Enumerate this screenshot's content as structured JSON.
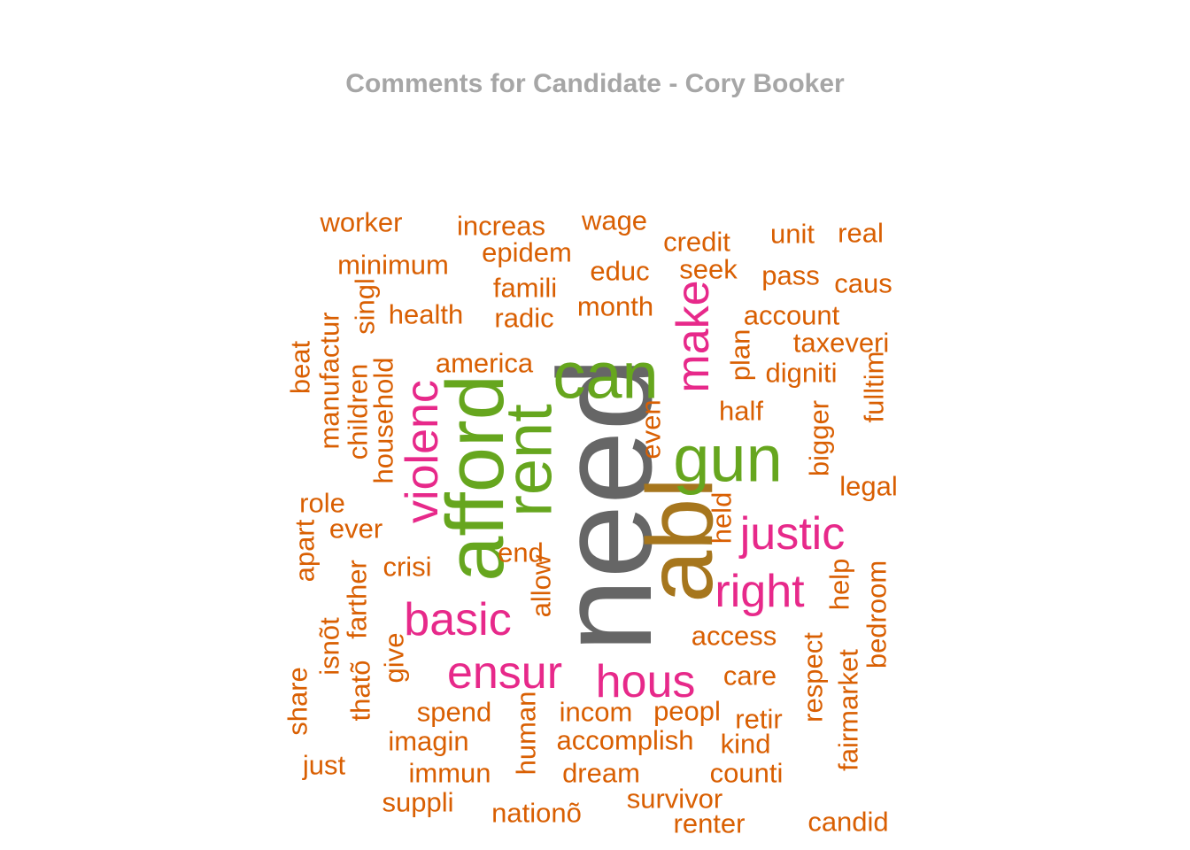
{
  "chart_data": {
    "type": "wordcloud",
    "title": "Comments for Candidate - Cory Booker",
    "colors": {
      "orange": "#d95f02",
      "pink": "#e7298a",
      "green": "#66a61e",
      "gray": "#666666",
      "gold": "#a6761d"
    },
    "words": [
      {
        "text": "need",
        "color": "gray",
        "weight": 10,
        "rotated": true
      },
      {
        "text": "abl",
        "color": "gold",
        "weight": 8,
        "rotated": true
      },
      {
        "text": "afford",
        "color": "green",
        "weight": 6,
        "rotated": true
      },
      {
        "text": "rent",
        "color": "green",
        "weight": 6,
        "rotated": true
      },
      {
        "text": "can",
        "color": "green",
        "weight": 6,
        "rotated": false
      },
      {
        "text": "gun",
        "color": "green",
        "weight": 6,
        "rotated": false
      },
      {
        "text": "make",
        "color": "pink",
        "weight": 4.5,
        "rotated": true
      },
      {
        "text": "violenc",
        "color": "pink",
        "weight": 4.5,
        "rotated": true
      },
      {
        "text": "justic",
        "color": "pink",
        "weight": 4.5,
        "rotated": false
      },
      {
        "text": "right",
        "color": "pink",
        "weight": 4.5,
        "rotated": false
      },
      {
        "text": "basic",
        "color": "pink",
        "weight": 4.5,
        "rotated": false
      },
      {
        "text": "ensur",
        "color": "pink",
        "weight": 4.5,
        "rotated": false
      },
      {
        "text": "hous",
        "color": "pink",
        "weight": 4.5,
        "rotated": false
      },
      {
        "text": "worker",
        "color": "orange",
        "weight": 2,
        "rotated": false
      },
      {
        "text": "increas",
        "color": "orange",
        "weight": 2,
        "rotated": false
      },
      {
        "text": "wage",
        "color": "orange",
        "weight": 2,
        "rotated": false
      },
      {
        "text": "credit",
        "color": "orange",
        "weight": 2,
        "rotated": false
      },
      {
        "text": "unit",
        "color": "orange",
        "weight": 2,
        "rotated": false
      },
      {
        "text": "real",
        "color": "orange",
        "weight": 2,
        "rotated": false
      },
      {
        "text": "epidem",
        "color": "orange",
        "weight": 2,
        "rotated": false
      },
      {
        "text": "minimum",
        "color": "orange",
        "weight": 2,
        "rotated": false
      },
      {
        "text": "educ",
        "color": "orange",
        "weight": 2,
        "rotated": false
      },
      {
        "text": "seek",
        "color": "orange",
        "weight": 2,
        "rotated": false
      },
      {
        "text": "pass",
        "color": "orange",
        "weight": 2,
        "rotated": false
      },
      {
        "text": "caus",
        "color": "orange",
        "weight": 2,
        "rotated": false
      },
      {
        "text": "famili",
        "color": "orange",
        "weight": 2,
        "rotated": false
      },
      {
        "text": "health",
        "color": "orange",
        "weight": 2,
        "rotated": false
      },
      {
        "text": "radic",
        "color": "orange",
        "weight": 2,
        "rotated": false
      },
      {
        "text": "month",
        "color": "orange",
        "weight": 2,
        "rotated": false
      },
      {
        "text": "account",
        "color": "orange",
        "weight": 2,
        "rotated": false
      },
      {
        "text": "taxeveri",
        "color": "orange",
        "weight": 2,
        "rotated": false
      },
      {
        "text": "america",
        "color": "orange",
        "weight": 2,
        "rotated": false
      },
      {
        "text": "digniti",
        "color": "orange",
        "weight": 2,
        "rotated": false
      },
      {
        "text": "half",
        "color": "orange",
        "weight": 2,
        "rotated": false
      },
      {
        "text": "legal",
        "color": "orange",
        "weight": 2,
        "rotated": false
      },
      {
        "text": "role",
        "color": "orange",
        "weight": 2,
        "rotated": false
      },
      {
        "text": "ever",
        "color": "orange",
        "weight": 2,
        "rotated": false
      },
      {
        "text": "end",
        "color": "orange",
        "weight": 2,
        "rotated": false
      },
      {
        "text": "crisi",
        "color": "orange",
        "weight": 2,
        "rotated": false
      },
      {
        "text": "access",
        "color": "orange",
        "weight": 2,
        "rotated": false
      },
      {
        "text": "care",
        "color": "orange",
        "weight": 2,
        "rotated": false
      },
      {
        "text": "spend",
        "color": "orange",
        "weight": 2,
        "rotated": false
      },
      {
        "text": "incom",
        "color": "orange",
        "weight": 2,
        "rotated": false
      },
      {
        "text": "peopl",
        "color": "orange",
        "weight": 2,
        "rotated": false
      },
      {
        "text": "retir",
        "color": "orange",
        "weight": 2,
        "rotated": false
      },
      {
        "text": "imagin",
        "color": "orange",
        "weight": 2,
        "rotated": false
      },
      {
        "text": "accomplish",
        "color": "orange",
        "weight": 2,
        "rotated": false
      },
      {
        "text": "kind",
        "color": "orange",
        "weight": 2,
        "rotated": false
      },
      {
        "text": "just",
        "color": "orange",
        "weight": 2,
        "rotated": false
      },
      {
        "text": "immun",
        "color": "orange",
        "weight": 2,
        "rotated": false
      },
      {
        "text": "dream",
        "color": "orange",
        "weight": 2,
        "rotated": false
      },
      {
        "text": "counti",
        "color": "orange",
        "weight": 2,
        "rotated": false
      },
      {
        "text": "suppli",
        "color": "orange",
        "weight": 2,
        "rotated": false
      },
      {
        "text": "survivor",
        "color": "orange",
        "weight": 2,
        "rotated": false
      },
      {
        "text": "nationõ",
        "color": "orange",
        "weight": 2,
        "rotated": false
      },
      {
        "text": "renter",
        "color": "orange",
        "weight": 2,
        "rotated": false
      },
      {
        "text": "candid",
        "color": "orange",
        "weight": 2,
        "rotated": false
      },
      {
        "text": "beat",
        "color": "orange",
        "weight": 2,
        "rotated": true
      },
      {
        "text": "manufactur",
        "color": "orange",
        "weight": 2,
        "rotated": true
      },
      {
        "text": "children",
        "color": "orange",
        "weight": 2,
        "rotated": true
      },
      {
        "text": "singl",
        "color": "orange",
        "weight": 2,
        "rotated": true
      },
      {
        "text": "household",
        "color": "orange",
        "weight": 2,
        "rotated": true
      },
      {
        "text": "apart",
        "color": "orange",
        "weight": 2,
        "rotated": true
      },
      {
        "text": "farther",
        "color": "orange",
        "weight": 2,
        "rotated": true
      },
      {
        "text": "isnõt",
        "color": "orange",
        "weight": 2,
        "rotated": true
      },
      {
        "text": "thatõ",
        "color": "orange",
        "weight": 2,
        "rotated": true
      },
      {
        "text": "share",
        "color": "orange",
        "weight": 2,
        "rotated": true
      },
      {
        "text": "give",
        "color": "orange",
        "weight": 2,
        "rotated": true
      },
      {
        "text": "allow",
        "color": "orange",
        "weight": 2,
        "rotated": true
      },
      {
        "text": "human",
        "color": "orange",
        "weight": 2,
        "rotated": true
      },
      {
        "text": "even",
        "color": "orange",
        "weight": 2,
        "rotated": true
      },
      {
        "text": "held",
        "color": "orange",
        "weight": 2,
        "rotated": true
      },
      {
        "text": "plan",
        "color": "orange",
        "weight": 2,
        "rotated": true
      },
      {
        "text": "bigger",
        "color": "orange",
        "weight": 2,
        "rotated": true
      },
      {
        "text": "fulltim",
        "color": "orange",
        "weight": 2,
        "rotated": true
      },
      {
        "text": "help",
        "color": "orange",
        "weight": 2,
        "rotated": true
      },
      {
        "text": "bedroom",
        "color": "orange",
        "weight": 2,
        "rotated": true
      },
      {
        "text": "respect",
        "color": "orange",
        "weight": 2,
        "rotated": true
      },
      {
        "text": "fairmarket",
        "color": "orange",
        "weight": 2,
        "rotated": true
      }
    ]
  }
}
